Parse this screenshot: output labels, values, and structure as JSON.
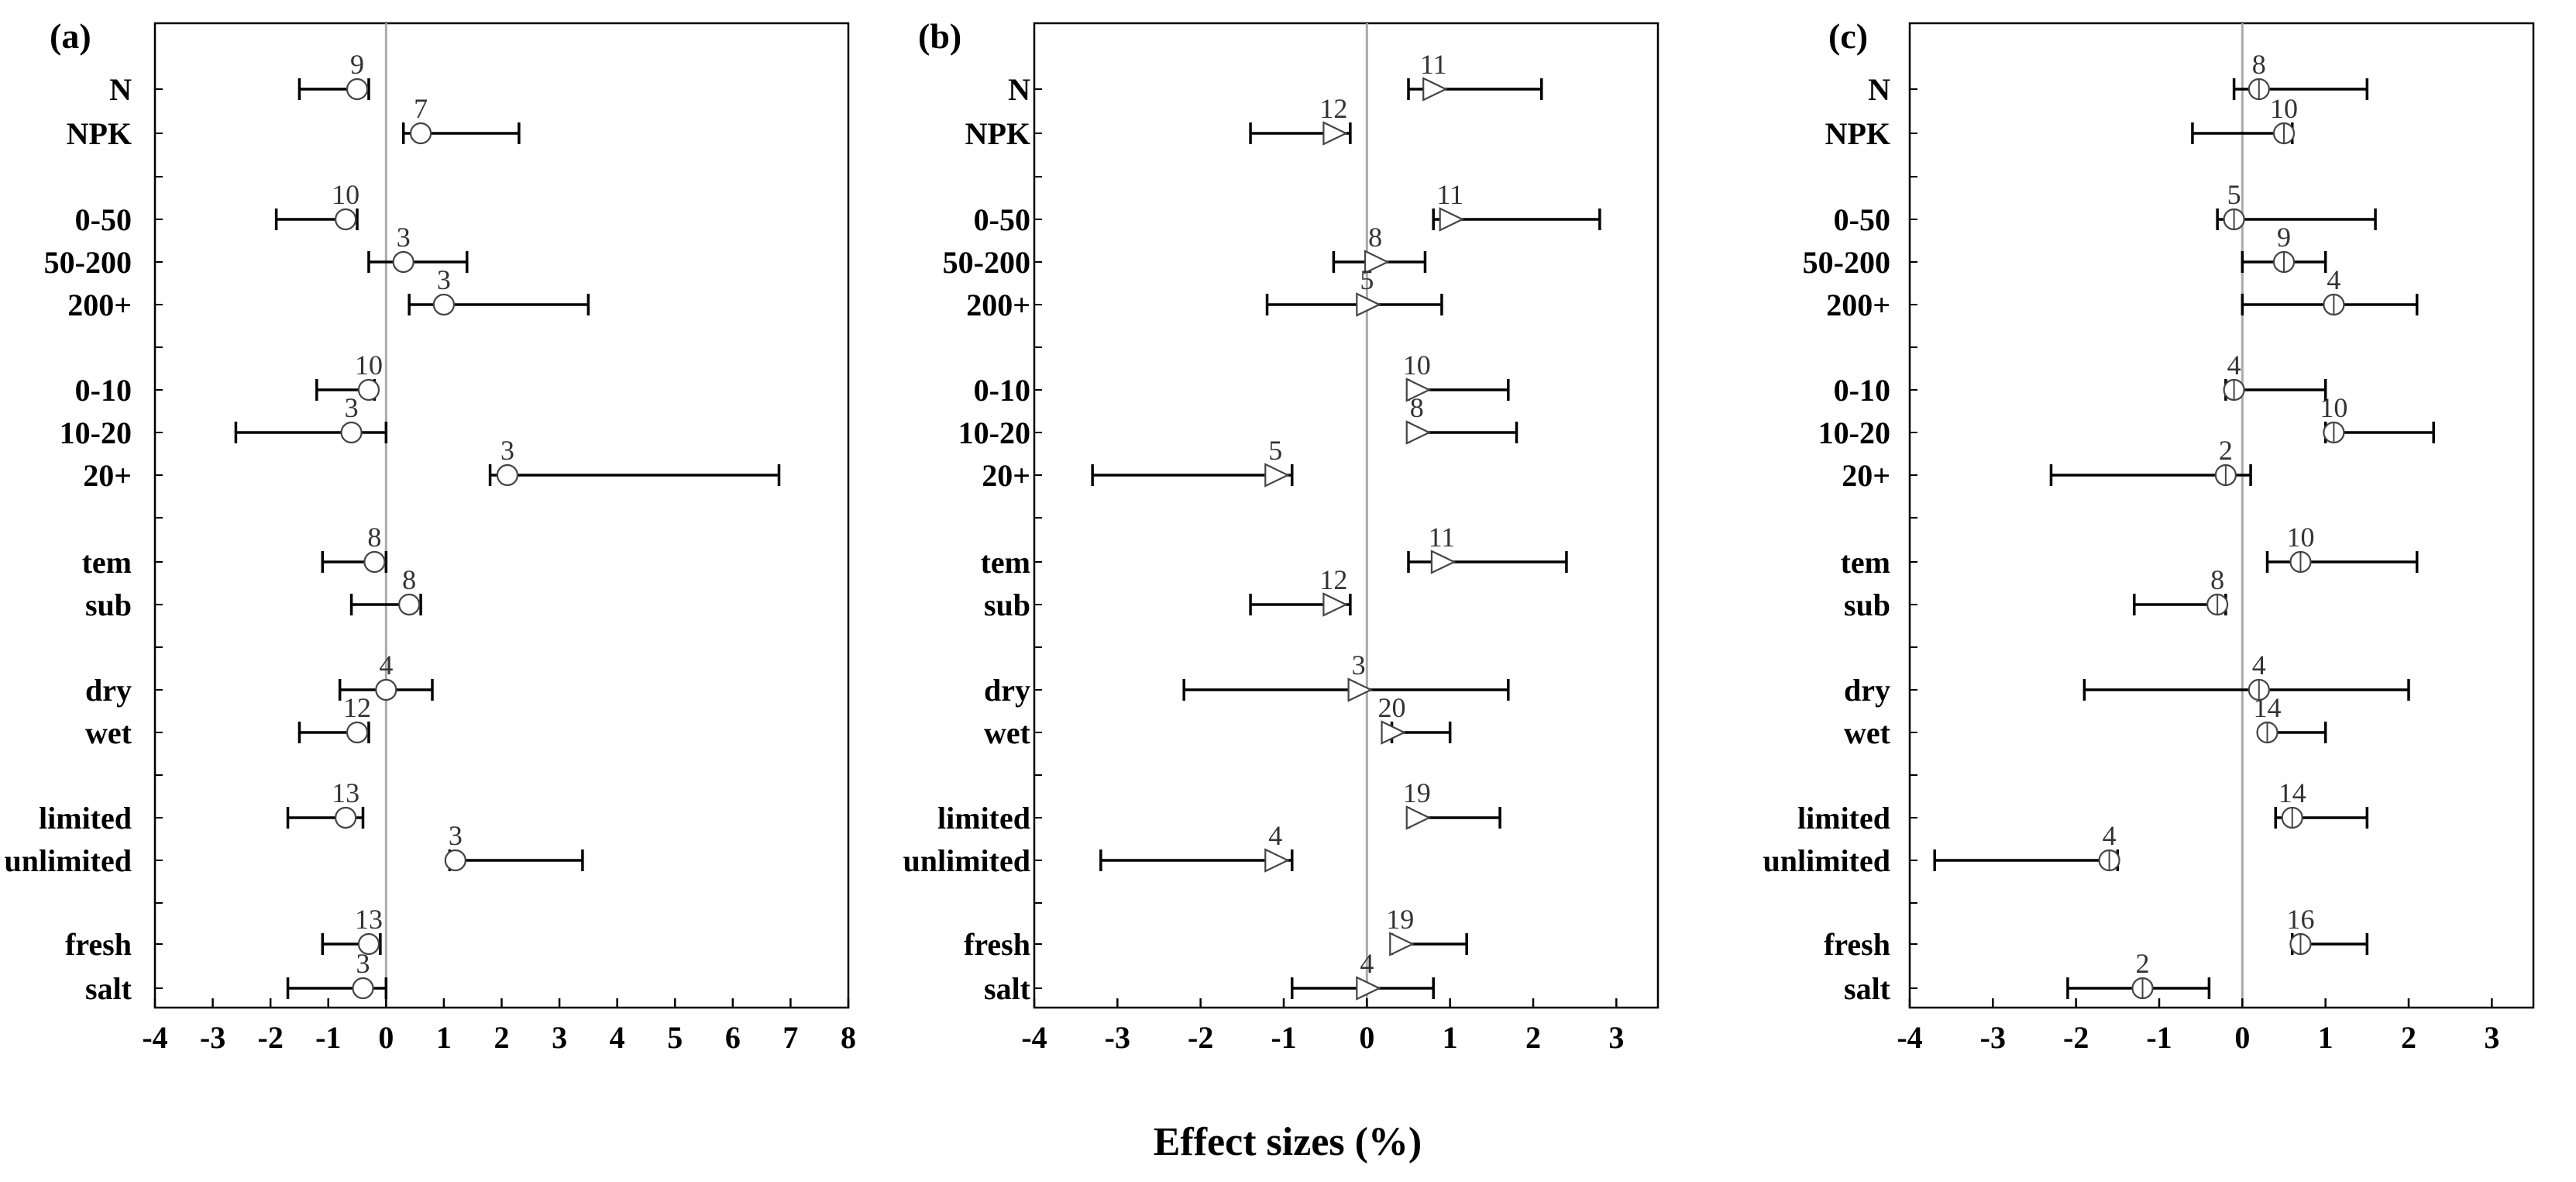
{
  "chart_data": [
    {
      "type": "forest",
      "panel_label": "(a)",
      "xlim": [
        -4,
        8
      ],
      "xticks": [
        -4,
        -3,
        -2,
        -1,
        0,
        1,
        2,
        3,
        4,
        5,
        6,
        7,
        8
      ],
      "marker": "circle",
      "categories": [
        "N",
        "NPK",
        "0-50",
        "50-200",
        "200+",
        "0-10",
        "10-20",
        "20+",
        "tem",
        "sub",
        "dry",
        "wet",
        "limited",
        "unlimited",
        "fresh",
        "salt"
      ],
      "points": [
        {
          "label": "N",
          "value": -0.5,
          "lo": -1.5,
          "hi": -0.3,
          "n": "9"
        },
        {
          "label": "NPK",
          "value": 0.6,
          "lo": 0.3,
          "hi": 2.3,
          "n": "7"
        },
        {
          "label": "0-50",
          "value": -0.7,
          "lo": -1.9,
          "hi": -0.5,
          "n": "10"
        },
        {
          "label": "50-200",
          "value": 0.3,
          "lo": -0.3,
          "hi": 1.4,
          "n": "3"
        },
        {
          "label": "200+",
          "value": 1.0,
          "lo": 0.4,
          "hi": 3.5,
          "n": "3"
        },
        {
          "label": "0-10",
          "value": -0.3,
          "lo": -1.2,
          "hi": -0.2,
          "n": "10"
        },
        {
          "label": "10-20",
          "value": -0.6,
          "lo": -2.6,
          "hi": 0.0,
          "n": "3"
        },
        {
          "label": "20+",
          "value": 2.1,
          "lo": 1.8,
          "hi": 6.8,
          "n": "3"
        },
        {
          "label": "tem",
          "value": -0.2,
          "lo": -1.1,
          "hi": 0.0,
          "n": "8"
        },
        {
          "label": "sub",
          "value": 0.4,
          "lo": -0.6,
          "hi": 0.6,
          "n": "8"
        },
        {
          "label": "dry",
          "value": 0.0,
          "lo": -0.8,
          "hi": 0.8,
          "n": "4"
        },
        {
          "label": "wet",
          "value": -0.5,
          "lo": -1.5,
          "hi": -0.3,
          "n": "12"
        },
        {
          "label": "limited",
          "value": -0.7,
          "lo": -1.7,
          "hi": -0.4,
          "n": "13"
        },
        {
          "label": "unlimited",
          "value": 1.2,
          "lo": 1.1,
          "hi": 3.4,
          "n": "3"
        },
        {
          "label": "fresh",
          "value": -0.3,
          "lo": -1.1,
          "hi": -0.1,
          "n": "13"
        },
        {
          "label": "salt",
          "value": -0.4,
          "lo": -1.7,
          "hi": 0.0,
          "n": "3"
        }
      ]
    },
    {
      "type": "forest",
      "panel_label": "(b)",
      "xlim": [
        -4,
        3.5
      ],
      "xticks": [
        -4,
        -3,
        -2,
        -1,
        0,
        1,
        2,
        3
      ],
      "marker": "triangle",
      "categories": [
        "N",
        "NPK",
        "0-50",
        "50-200",
        "200+",
        "0-10",
        "10-20",
        "20+",
        "tem",
        "sub",
        "dry",
        "wet",
        "limited",
        "unlimited",
        "fresh",
        "salt"
      ],
      "points": [
        {
          "label": "N",
          "value": 0.8,
          "lo": 0.5,
          "hi": 2.1,
          "n": "11"
        },
        {
          "label": "NPK",
          "value": -0.4,
          "lo": -1.4,
          "hi": -0.2,
          "n": "12"
        },
        {
          "label": "0-50",
          "value": 1.0,
          "lo": 0.8,
          "hi": 2.8,
          "n": "11"
        },
        {
          "label": "50-200",
          "value": 0.1,
          "lo": -0.4,
          "hi": 0.7,
          "n": "8"
        },
        {
          "label": "200+",
          "value": 0.0,
          "lo": -1.2,
          "hi": 0.9,
          "n": "5"
        },
        {
          "label": "0-10",
          "value": 0.6,
          "lo": 0.5,
          "hi": 1.7,
          "n": "10"
        },
        {
          "label": "10-20",
          "value": 0.6,
          "lo": 0.5,
          "hi": 1.8,
          "n": "8"
        },
        {
          "label": "20+",
          "value": -1.1,
          "lo": -3.3,
          "hi": -0.9,
          "n": "5"
        },
        {
          "label": "tem",
          "value": 0.9,
          "lo": 0.5,
          "hi": 2.4,
          "n": "11"
        },
        {
          "label": "sub",
          "value": -0.4,
          "lo": -1.4,
          "hi": -0.2,
          "n": "12"
        },
        {
          "label": "dry",
          "value": -0.1,
          "lo": -2.2,
          "hi": 1.7,
          "n": "3"
        },
        {
          "label": "wet",
          "value": 0.3,
          "lo": 0.3,
          "hi": 1.0,
          "n": "20"
        },
        {
          "label": "limited",
          "value": 0.6,
          "lo": 0.5,
          "hi": 1.6,
          "n": "19"
        },
        {
          "label": "unlimited",
          "value": -1.1,
          "lo": -3.2,
          "hi": -0.9,
          "n": "4"
        },
        {
          "label": "fresh",
          "value": 0.4,
          "lo": 0.3,
          "hi": 1.2,
          "n": "19"
        },
        {
          "label": "salt",
          "value": 0.0,
          "lo": -0.9,
          "hi": 0.8,
          "n": "4"
        }
      ]
    },
    {
      "type": "forest",
      "panel_label": "(c)",
      "xlim": [
        -4,
        3.5
      ],
      "xticks": [
        -4,
        -3,
        -2,
        -1,
        0,
        1,
        2,
        3
      ],
      "marker": "circle-bar",
      "categories": [
        "N",
        "NPK",
        "0-50",
        "50-200",
        "200+",
        "0-10",
        "10-20",
        "20+",
        "tem",
        "sub",
        "dry",
        "wet",
        "limited",
        "unlimited",
        "fresh",
        "salt"
      ],
      "points": [
        {
          "label": "N",
          "value": 0.2,
          "lo": -0.1,
          "hi": 1.5,
          "n": "8"
        },
        {
          "label": "NPK",
          "value": 0.5,
          "lo": -0.6,
          "hi": 0.6,
          "n": "10"
        },
        {
          "label": "0-50",
          "value": -0.1,
          "lo": -0.3,
          "hi": 1.6,
          "n": "5"
        },
        {
          "label": "50-200",
          "value": 0.5,
          "lo": 0.0,
          "hi": 1.0,
          "n": "9"
        },
        {
          "label": "200+",
          "value": 1.1,
          "lo": 0.0,
          "hi": 2.1,
          "n": "4"
        },
        {
          "label": "0-10",
          "value": -0.1,
          "lo": -0.2,
          "hi": 1.0,
          "n": "4"
        },
        {
          "label": "10-20",
          "value": 1.1,
          "lo": 1.0,
          "hi": 2.3,
          "n": "10"
        },
        {
          "label": "20+",
          "value": -0.2,
          "lo": -2.3,
          "hi": 0.1,
          "n": "2"
        },
        {
          "label": "tem",
          "value": 0.7,
          "lo": 0.3,
          "hi": 2.1,
          "n": "10"
        },
        {
          "label": "sub",
          "value": -0.3,
          "lo": -1.3,
          "hi": -0.2,
          "n": "8"
        },
        {
          "label": "dry",
          "value": 0.2,
          "lo": -1.9,
          "hi": 2.0,
          "n": "4"
        },
        {
          "label": "wet",
          "value": 0.3,
          "lo": 0.3,
          "hi": 1.0,
          "n": "14"
        },
        {
          "label": "limited",
          "value": 0.6,
          "lo": 0.4,
          "hi": 1.5,
          "n": "14"
        },
        {
          "label": "unlimited",
          "value": -1.6,
          "lo": -3.7,
          "hi": -1.5,
          "n": "4"
        },
        {
          "label": "fresh",
          "value": 0.7,
          "lo": 0.6,
          "hi": 1.5,
          "n": "16"
        },
        {
          "label": "salt",
          "value": -1.2,
          "lo": -2.1,
          "hi": -0.4,
          "n": "2"
        }
      ]
    }
  ],
  "xlabel": "Effect sizes (%)"
}
